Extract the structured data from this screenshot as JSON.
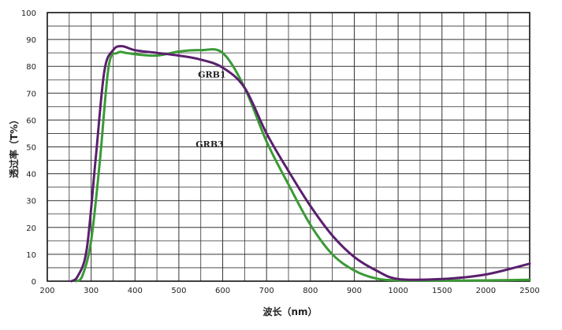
{
  "chart_data": {
    "type": "line",
    "title": "",
    "xlabel": "波长（nm）",
    "ylabel": "透过率（T%）",
    "x_ticks": [
      "200",
      "300",
      "400",
      "500",
      "600",
      "700",
      "800",
      "900",
      "1000",
      "1500",
      "2000",
      "2500"
    ],
    "y_ticks": [
      "0",
      "10",
      "20",
      "30",
      "40",
      "50",
      "60",
      "70",
      "80",
      "90",
      "100"
    ],
    "ylim": [
      0,
      100
    ],
    "grid": true,
    "x_scale": "piecewise: 200-1000 linear in 100 nm steps, 1000-2500 linear in 500 nm steps",
    "series": [
      {
        "name": "GRB3",
        "color": "#3a9a35",
        "points": [
          [
            265,
            0
          ],
          [
            280,
            2
          ],
          [
            300,
            15
          ],
          [
            320,
            45
          ],
          [
            340,
            80
          ],
          [
            360,
            85
          ],
          [
            380,
            85
          ],
          [
            400,
            84.5
          ],
          [
            450,
            84
          ],
          [
            500,
            85.5
          ],
          [
            550,
            86
          ],
          [
            600,
            85
          ],
          [
            650,
            72
          ],
          [
            700,
            52
          ],
          [
            750,
            36
          ],
          [
            800,
            21
          ],
          [
            850,
            10
          ],
          [
            900,
            4
          ],
          [
            950,
            1
          ],
          [
            1000,
            0.3
          ],
          [
            1500,
            0.2
          ],
          [
            2000,
            0.3
          ],
          [
            2500,
            0.5
          ]
        ]
      },
      {
        "name": "GRB1",
        "color": "#5a1f6e",
        "points": [
          [
            255,
            0
          ],
          [
            270,
            2
          ],
          [
            290,
            12
          ],
          [
            310,
            45
          ],
          [
            330,
            78
          ],
          [
            350,
            86
          ],
          [
            370,
            87.5
          ],
          [
            400,
            86
          ],
          [
            450,
            85
          ],
          [
            500,
            84
          ],
          [
            550,
            82.5
          ],
          [
            600,
            79.5
          ],
          [
            650,
            72
          ],
          [
            700,
            55
          ],
          [
            750,
            41
          ],
          [
            800,
            28
          ],
          [
            850,
            17
          ],
          [
            900,
            9
          ],
          [
            950,
            4
          ],
          [
            1000,
            0.8
          ],
          [
            1500,
            0.8
          ],
          [
            2000,
            2.5
          ],
          [
            2500,
            6.5
          ]
        ]
      }
    ]
  }
}
